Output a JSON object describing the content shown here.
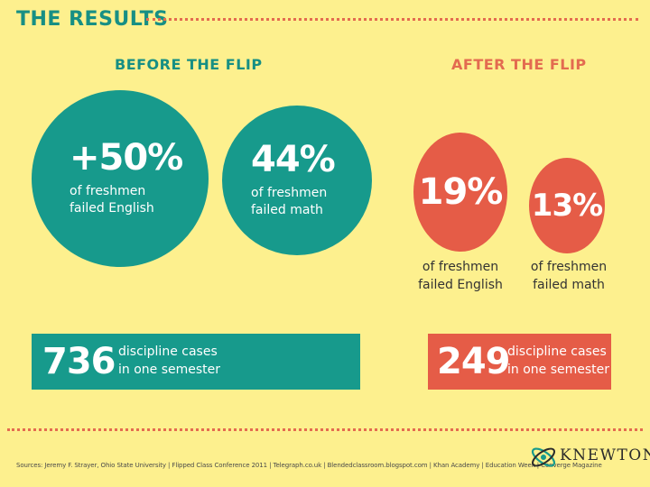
{
  "title": "THE RESULTS",
  "before": {
    "heading": "BEFORE THE FLIP",
    "english": {
      "value": "+50%",
      "line1": "of freshmen",
      "line2": "failed English"
    },
    "math": {
      "value": "44%",
      "line1": "of freshmen",
      "line2": "failed math"
    },
    "discipline": {
      "value": "736",
      "line1": "discipline cases",
      "line2": "in one semester"
    }
  },
  "after": {
    "heading": "AFTER THE FLIP",
    "english": {
      "value": "19%",
      "line1": "of freshmen",
      "line2": "failed English"
    },
    "math": {
      "value": "13%",
      "line1": "of freshmen",
      "line2": "failed math"
    },
    "discipline": {
      "value": "249",
      "line1": "discipline cases",
      "line2": "in one semester"
    }
  },
  "footer": {
    "sources": "Sources: Jeremy F. Strayer, Ohio State University | Flipped Class Conference 2011 | Telegraph.co.uk | Blendedclassroom.blogspot.com | Khan Academy | Education Week | Converge Magazine",
    "logo": "KNEWTON"
  },
  "colors": {
    "teal": "#179a8c",
    "red": "#e55c47",
    "background": "#fdf08e"
  }
}
